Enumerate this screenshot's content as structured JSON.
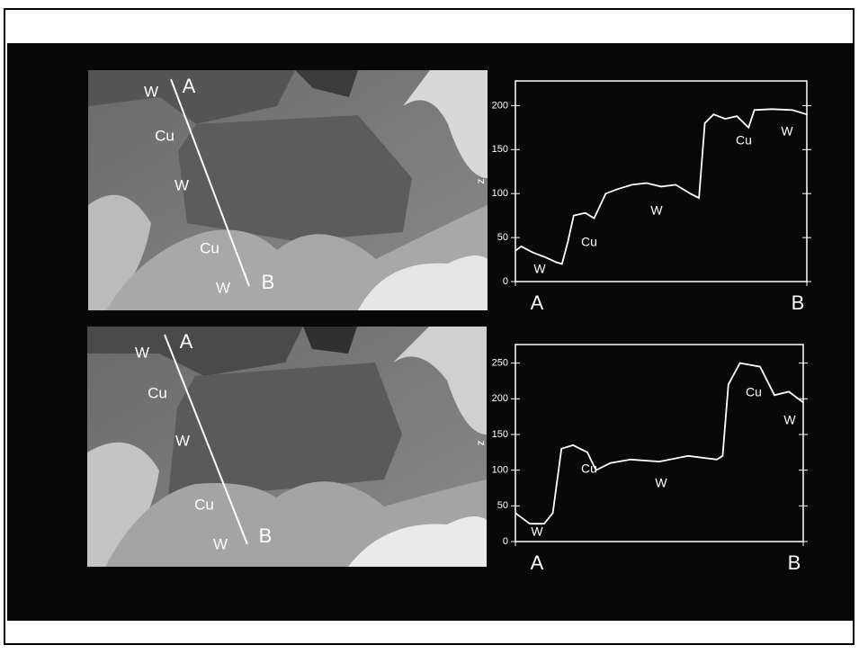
{
  "chart_data": [
    {
      "type": "line",
      "ylabel": "z",
      "x": [
        0,
        0.02,
        0.06,
        0.1,
        0.14,
        0.16,
        0.18,
        0.2,
        0.24,
        0.27,
        0.31,
        0.35,
        0.4,
        0.45,
        0.5,
        0.55,
        0.6,
        0.63,
        0.65,
        0.68,
        0.72,
        0.76,
        0.8,
        0.82,
        0.88,
        0.95,
        1
      ],
      "series": [
        {
          "color": "#ffffff",
          "values": [
            35,
            40,
            33,
            28,
            22,
            20,
            45,
            75,
            78,
            72,
            100,
            105,
            110,
            112,
            108,
            110,
            100,
            95,
            180,
            190,
            185,
            188,
            175,
            195,
            196,
            195,
            190
          ]
        }
      ],
      "xlim": [
        0,
        1
      ],
      "xticks": [
        {
          "value": 0,
          "label": "A"
        },
        {
          "value": 1,
          "label": "B"
        }
      ],
      "ylim": [
        0,
        228
      ],
      "yticks": [
        0,
        50,
        100,
        150,
        200
      ],
      "annotations": [
        "W",
        "Cu",
        "W",
        "Cu",
        "W"
      ]
    },
    {
      "type": "line",
      "ylabel": "z",
      "x": [
        0,
        0.05,
        0.1,
        0.13,
        0.16,
        0.2,
        0.25,
        0.28,
        0.33,
        0.4,
        0.5,
        0.6,
        0.7,
        0.72,
        0.74,
        0.78,
        0.85,
        0.9,
        0.95,
        1
      ],
      "series": [
        {
          "color": "#ffffff",
          "values": [
            40,
            25,
            25,
            40,
            130,
            135,
            125,
            100,
            110,
            115,
            112,
            120,
            115,
            120,
            220,
            250,
            245,
            205,
            210,
            195
          ]
        }
      ],
      "xlim": [
        0,
        1
      ],
      "xticks": [
        {
          "value": 0,
          "label": "A"
        },
        {
          "value": 1,
          "label": "B"
        }
      ],
      "ylim": [
        0,
        276
      ],
      "yticks": [
        0,
        50,
        100,
        150,
        200,
        250
      ],
      "annotations": [
        "W",
        "Cu",
        "W",
        "Cu",
        "W"
      ]
    }
  ],
  "images": [
    {
      "labels": [
        "W",
        "A",
        "Cu",
        "W",
        "Cu",
        "B",
        "W"
      ]
    },
    {
      "labels": [
        "W",
        "A",
        "Cu",
        "W",
        "Cu",
        "B",
        "W"
      ]
    }
  ]
}
